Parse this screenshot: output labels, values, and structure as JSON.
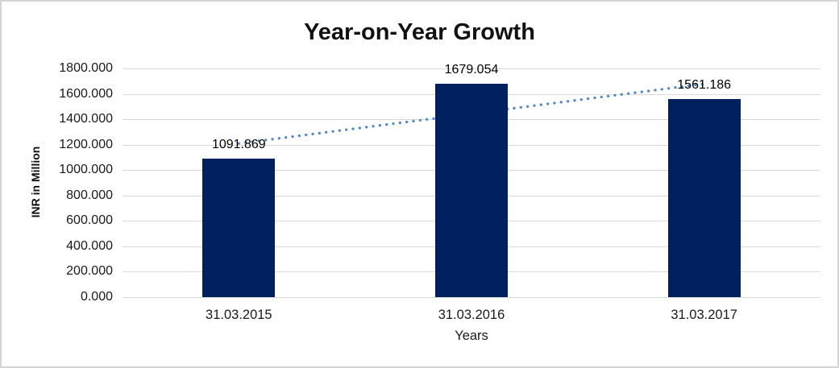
{
  "chart_data": {
    "type": "bar",
    "title": "Year-on-Year Growth",
    "xlabel": "Years",
    "ylabel": "INR in Million",
    "categories": [
      "31.03.2015",
      "31.03.2016",
      "31.03.2017"
    ],
    "values": [
      1091.869,
      1679.054,
      1561.186
    ],
    "data_labels": [
      "1091.869",
      "1679.054",
      "1561.186"
    ],
    "ylim": [
      0,
      1800
    ],
    "ytick_step": 200,
    "ytick_labels": [
      "0.000",
      "200.000",
      "400.000",
      "600.000",
      "800.000",
      "1000.000",
      "1200.000",
      "1400.000",
      "1600.000",
      "1800.000"
    ],
    "grid": true,
    "legend_position": "none",
    "bar_color": "#002060",
    "gridline_color": "#d9d9d9",
    "frame_border_color": "#d5d5d5",
    "trendline": {
      "type": "linear",
      "style": "dotted",
      "color": "#4e86c8"
    }
  }
}
